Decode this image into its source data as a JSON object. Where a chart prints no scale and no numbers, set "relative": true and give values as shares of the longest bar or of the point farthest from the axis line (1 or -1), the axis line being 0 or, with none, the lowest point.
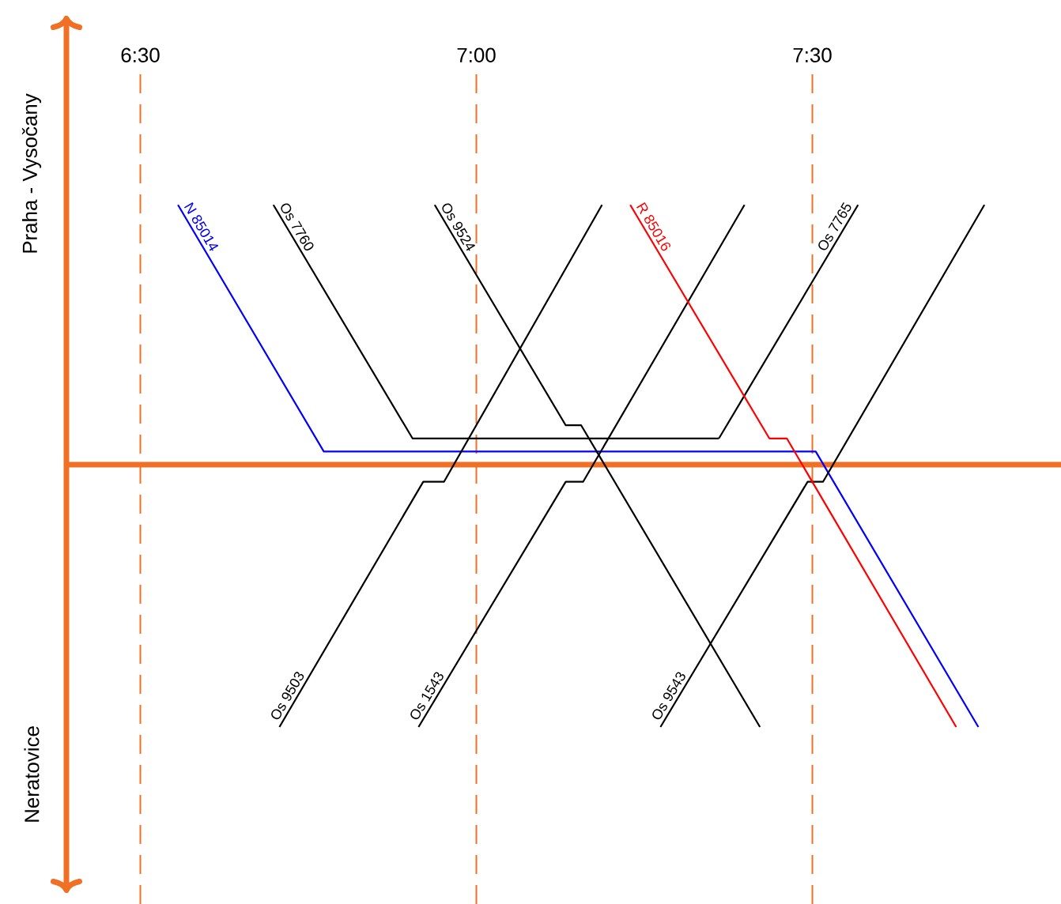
{
  "chart_data": {
    "type": "line",
    "relative": true,
    "marker": "none",
    "line_style": "solid",
    "ref_lines": [
      {
        "axis": "x",
        "value": 6.5,
        "color": "#f07025",
        "line_style": "dashed"
      },
      {
        "axis": "x",
        "value": 7.0,
        "color": "#f07025",
        "line_style": "dashed"
      },
      {
        "axis": "x",
        "value": 7.5,
        "color": "#f07025",
        "line_style": "dashed"
      },
      {
        "axis": "y",
        "value": 0,
        "color": "#f07025",
        "line_style": "solid"
      }
    ],
    "xlim": [
      6.39,
      7.87
    ],
    "xticks": [
      {
        "value": 6.5,
        "label": "6:30"
      },
      {
        "value": 7.0,
        "label": "7:00"
      },
      {
        "value": 7.5,
        "label": "7:30"
      }
    ],
    "annotations": [
      "Praha - Vysočany",
      "Neratovice"
    ],
    "series": [
      {
        "name": "N 85014",
        "color": "#0000ff",
        "x": [
          6.556,
          6.773,
          7.505,
          7.747
        ],
        "values": [
          0.99,
          0.05,
          0.05,
          -1
        ]
      },
      {
        "name": "Os 7760",
        "color": "#000000",
        "x": [
          6.698,
          6.905,
          7.361
        ],
        "values": [
          0.99,
          0.1,
          0.1
        ]
      },
      {
        "name": "Os 7765",
        "color": "#000000",
        "x": [
          7.361,
          7.568
        ],
        "values": [
          0.1,
          0.99
        ]
      },
      {
        "name": "Os 9524",
        "color": "#000000",
        "x": [
          6.938,
          7.133,
          7.156,
          7.422
        ],
        "values": [
          0.99,
          0.15,
          0.15,
          -1
        ]
      },
      {
        "name": "Os 9503",
        "color": "#000000",
        "x": [
          6.707,
          6.921,
          6.952,
          7.187
        ],
        "values": [
          -1,
          -0.065,
          -0.065,
          0.99
        ]
      },
      {
        "name": "Os 1543",
        "color": "#000000",
        "x": [
          6.914,
          7.133,
          7.159,
          7.399
        ],
        "values": [
          -1,
          -0.065,
          -0.065,
          0.99
        ]
      },
      {
        "name": "Os 9543",
        "color": "#000000",
        "x": [
          7.274,
          7.493,
          7.516,
          7.756
        ],
        "values": [
          -1,
          -0.065,
          -0.065,
          0.99
        ]
      },
      {
        "name": "R 85016",
        "color": "#ff0000",
        "x": [
          7.229,
          7.436,
          7.462,
          7.714
        ],
        "values": [
          0.99,
          0.1,
          0.1,
          -1
        ]
      }
    ]
  }
}
